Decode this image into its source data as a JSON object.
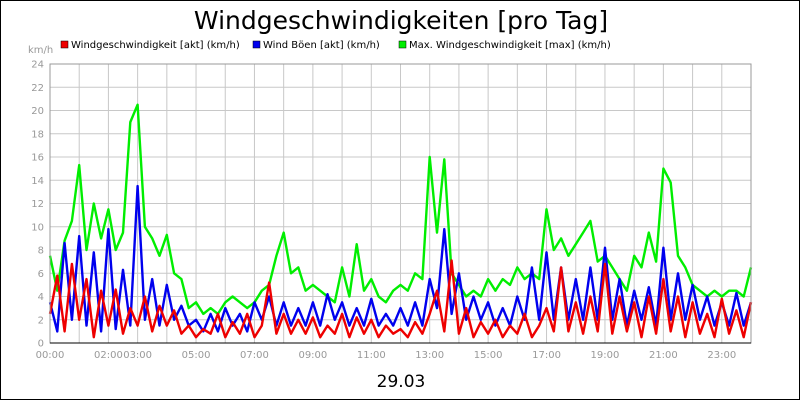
{
  "chart_data": {
    "type": "line",
    "title": "Windgeschwindigkeiten [pro Tag]",
    "ylabel": "km/h",
    "xlabel": "29.03",
    "ylim": [
      0,
      24
    ],
    "y_ticks": [
      "0",
      "2",
      "4",
      "6",
      "8",
      "10",
      "12",
      "14",
      "16",
      "18",
      "20",
      "22",
      "24"
    ],
    "x_tick_labels": [
      "00:00",
      "02:00",
      "03:00",
      "05:00",
      "07:00",
      "09:00",
      "11:00",
      "13:00",
      "15:00",
      "17:00",
      "19:00",
      "21:00",
      "23:00"
    ],
    "x_tick_hours": [
      0,
      2,
      3,
      5,
      7,
      9,
      11,
      13,
      15,
      17,
      19,
      21,
      23
    ],
    "xlim_hours": [
      0,
      24
    ],
    "grid": true,
    "legend_position": "top",
    "series": [
      {
        "name": "Windgeschwindigkeit [akt] (km/h)",
        "color": "#ee0000",
        "x": [
          0,
          0.25,
          0.5,
          0.75,
          1,
          1.25,
          1.5,
          1.75,
          2,
          2.25,
          2.5,
          2.75,
          3,
          3.25,
          3.5,
          3.75,
          4,
          4.25,
          4.5,
          4.75,
          5,
          5.25,
          5.5,
          5.75,
          6,
          6.25,
          6.5,
          6.75,
          7,
          7.25,
          7.5,
          7.75,
          8,
          8.25,
          8.5,
          8.75,
          9,
          9.25,
          9.5,
          9.75,
          10,
          10.25,
          10.5,
          10.75,
          11,
          11.25,
          11.5,
          11.75,
          12,
          12.25,
          12.5,
          12.75,
          13,
          13.25,
          13.5,
          13.75,
          14,
          14.25,
          14.5,
          14.75,
          15,
          15.25,
          15.5,
          15.75,
          16,
          16.25,
          16.5,
          16.75,
          17,
          17.25,
          17.5,
          17.75,
          18,
          18.25,
          18.5,
          18.75,
          19,
          19.25,
          19.5,
          19.75,
          20,
          20.25,
          20.5,
          20.75,
          21,
          21.25,
          21.5,
          21.75,
          22,
          22.25,
          22.5,
          22.75,
          23,
          23.25,
          23.5,
          23.75,
          24
        ],
        "values": [
          2.5,
          5.8,
          1,
          6.8,
          2,
          5.5,
          0.5,
          4.5,
          1.5,
          4.6,
          0.8,
          3,
          1.5,
          4,
          1,
          3.2,
          1.5,
          2.8,
          0.8,
          1.5,
          0.5,
          1.2,
          0.8,
          2.5,
          0.5,
          1.8,
          0.8,
          2.5,
          0.5,
          1.5,
          5.2,
          0.8,
          2.5,
          0.8,
          2,
          0.8,
          2.2,
          0.5,
          1.5,
          0.8,
          2.5,
          0.5,
          2.2,
          0.8,
          2,
          0.5,
          1.5,
          0.8,
          1.2,
          0.5,
          1.8,
          0.8,
          2.5,
          4.5,
          1,
          7.1,
          0.8,
          3,
          0.5,
          1.8,
          0.8,
          2,
          0.5,
          1.5,
          0.8,
          2.5,
          0.5,
          1.5,
          3,
          1,
          6.5,
          1,
          3.5,
          0.8,
          4,
          1,
          6.8,
          0.8,
          4,
          1,
          3.5,
          0.5,
          4,
          0.8,
          5.5,
          1,
          4,
          0.5,
          3.5,
          0.8,
          2.5,
          0.5,
          3.8,
          0.8,
          2.8,
          0.5,
          3.5
        ]
      },
      {
        "name": "Wind Böen [akt] (km/h)",
        "color": "#0000ee",
        "x": [
          0,
          0.25,
          0.5,
          0.75,
          1,
          1.25,
          1.5,
          1.75,
          2,
          2.25,
          2.5,
          2.75,
          3,
          3.25,
          3.5,
          3.75,
          4,
          4.25,
          4.5,
          4.75,
          5,
          5.25,
          5.5,
          5.75,
          6,
          6.25,
          6.5,
          6.75,
          7,
          7.25,
          7.5,
          7.75,
          8,
          8.25,
          8.5,
          8.75,
          9,
          9.25,
          9.5,
          9.75,
          10,
          10.25,
          10.5,
          10.75,
          11,
          11.25,
          11.5,
          11.75,
          12,
          12.25,
          12.5,
          12.75,
          13,
          13.25,
          13.5,
          13.75,
          14,
          14.25,
          14.5,
          14.75,
          15,
          15.25,
          15.5,
          15.75,
          16,
          16.25,
          16.5,
          16.75,
          17,
          17.25,
          17.5,
          17.75,
          18,
          18.25,
          18.5,
          18.75,
          19,
          19.25,
          19.5,
          19.75,
          20,
          20.25,
          20.5,
          20.75,
          21,
          21.25,
          21.5,
          21.75,
          22,
          22.25,
          22.5,
          22.75,
          23,
          23.25,
          23.5,
          23.75,
          24
        ],
        "values": [
          3.5,
          1,
          8.6,
          2,
          9.2,
          1.5,
          7.8,
          1,
          9.8,
          1.2,
          6.3,
          1.5,
          13.5,
          2,
          5.5,
          1.5,
          5,
          2,
          3.2,
          1.5,
          2,
          1,
          2.5,
          1,
          3,
          1.5,
          2.5,
          1,
          3.5,
          2,
          4,
          1.5,
          3.5,
          1.5,
          3,
          1.5,
          3.5,
          1.5,
          4.2,
          2,
          3.5,
          1.5,
          3,
          1.5,
          3.8,
          1.5,
          2.5,
          1.5,
          3,
          1.5,
          3.5,
          1.5,
          5.5,
          3,
          9.8,
          2.5,
          6,
          2,
          4,
          2,
          3.5,
          1.5,
          3,
          1.5,
          4,
          2,
          6.5,
          2,
          7.8,
          2,
          6.5,
          2,
          5.5,
          2,
          6.5,
          2,
          8.2,
          2,
          5.5,
          1.5,
          4.5,
          2,
          4.8,
          1.5,
          8.2,
          2,
          6,
          2,
          5,
          2,
          4,
          1.5,
          3.5,
          1.5,
          4.3,
          1.5,
          3.5
        ]
      },
      {
        "name": "Max. Windgeschwindigkeit [max] (km/h)",
        "color": "#00ee00",
        "x": [
          0,
          0.25,
          0.5,
          0.75,
          1,
          1.25,
          1.5,
          1.75,
          2,
          2.25,
          2.5,
          2.75,
          3,
          3.25,
          3.5,
          3.75,
          4,
          4.25,
          4.5,
          4.75,
          5,
          5.25,
          5.5,
          5.75,
          6,
          6.25,
          6.5,
          6.75,
          7,
          7.25,
          7.5,
          7.75,
          8,
          8.25,
          8.5,
          8.75,
          9,
          9.25,
          9.5,
          9.75,
          10,
          10.25,
          10.5,
          10.75,
          11,
          11.25,
          11.5,
          11.75,
          12,
          12.25,
          12.5,
          12.75,
          13,
          13.25,
          13.5,
          13.75,
          14,
          14.25,
          14.5,
          14.75,
          15,
          15.25,
          15.5,
          15.75,
          16,
          16.25,
          16.5,
          16.75,
          17,
          17.25,
          17.5,
          17.75,
          18,
          18.25,
          18.5,
          18.75,
          19,
          19.25,
          19.5,
          19.75,
          20,
          20.25,
          20.5,
          20.75,
          21,
          21.25,
          21.5,
          21.75,
          22,
          22.25,
          22.5,
          22.75,
          23,
          23.25,
          23.5,
          23.75,
          24
        ],
        "values": [
          7.5,
          4.5,
          8.8,
          10.5,
          15.3,
          8,
          12,
          9,
          11.5,
          8,
          9.5,
          19,
          20.5,
          10,
          9,
          7.5,
          9.3,
          6,
          5.5,
          3,
          3.5,
          2.5,
          3,
          2.5,
          3.5,
          4,
          3.5,
          3,
          3.5,
          4.5,
          5,
          7.5,
          9.5,
          6,
          6.5,
          4.5,
          5,
          4.5,
          4,
          3.5,
          6.5,
          4,
          8.5,
          4.5,
          5.5,
          4,
          3.5,
          4.5,
          5,
          4.5,
          6,
          5.5,
          16,
          9.5,
          15.8,
          6,
          5,
          4,
          4.5,
          4,
          5.5,
          4.5,
          5.5,
          5,
          6.5,
          5.5,
          6,
          5.5,
          11.5,
          8,
          9,
          7.5,
          8.5,
          9.5,
          10.5,
          7,
          7.5,
          6.5,
          5.5,
          4.5,
          7.5,
          6.5,
          9.5,
          7,
          15,
          13.8,
          7.5,
          6.5,
          5,
          4.5,
          4,
          4.5,
          4,
          4.5,
          4.5,
          4,
          6.5
        ]
      }
    ]
  }
}
